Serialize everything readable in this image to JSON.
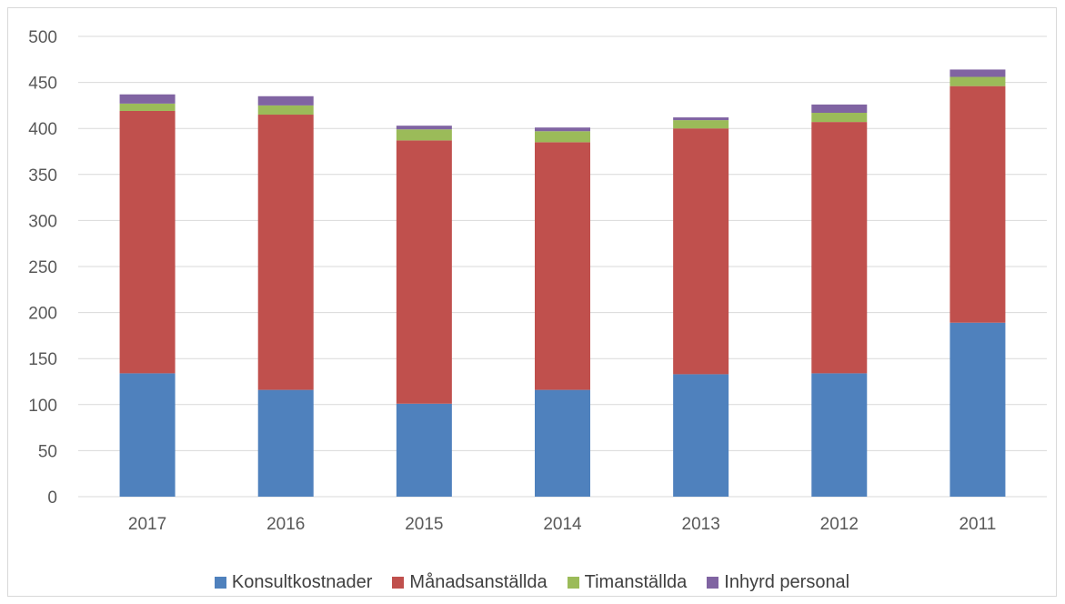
{
  "chart_data": {
    "type": "bar",
    "stacked": true,
    "categories": [
      "2017",
      "2016",
      "2015",
      "2014",
      "2013",
      "2012",
      "2011"
    ],
    "series": [
      {
        "name": "Konsultkostnader",
        "color": "#4f81bd",
        "values": [
          134,
          116,
          101,
          116,
          133,
          134,
          189
        ]
      },
      {
        "name": "Månadsanställda",
        "color": "#c0504d",
        "values": [
          285,
          299,
          286,
          269,
          267,
          273,
          257
        ]
      },
      {
        "name": "Timanställda",
        "color": "#9bbb59",
        "values": [
          8,
          10,
          12,
          12,
          9,
          10,
          10
        ]
      },
      {
        "name": "Inhyrd personal",
        "color": "#8064a2",
        "values": [
          10,
          10,
          4,
          4,
          3,
          9,
          8
        ]
      }
    ],
    "ylim": [
      0,
      500
    ],
    "yticks": [
      0,
      50,
      100,
      150,
      200,
      250,
      300,
      350,
      400,
      450,
      500
    ],
    "grid": true,
    "legend_position": "bottom",
    "title": "",
    "xlabel": "",
    "ylabel": ""
  }
}
